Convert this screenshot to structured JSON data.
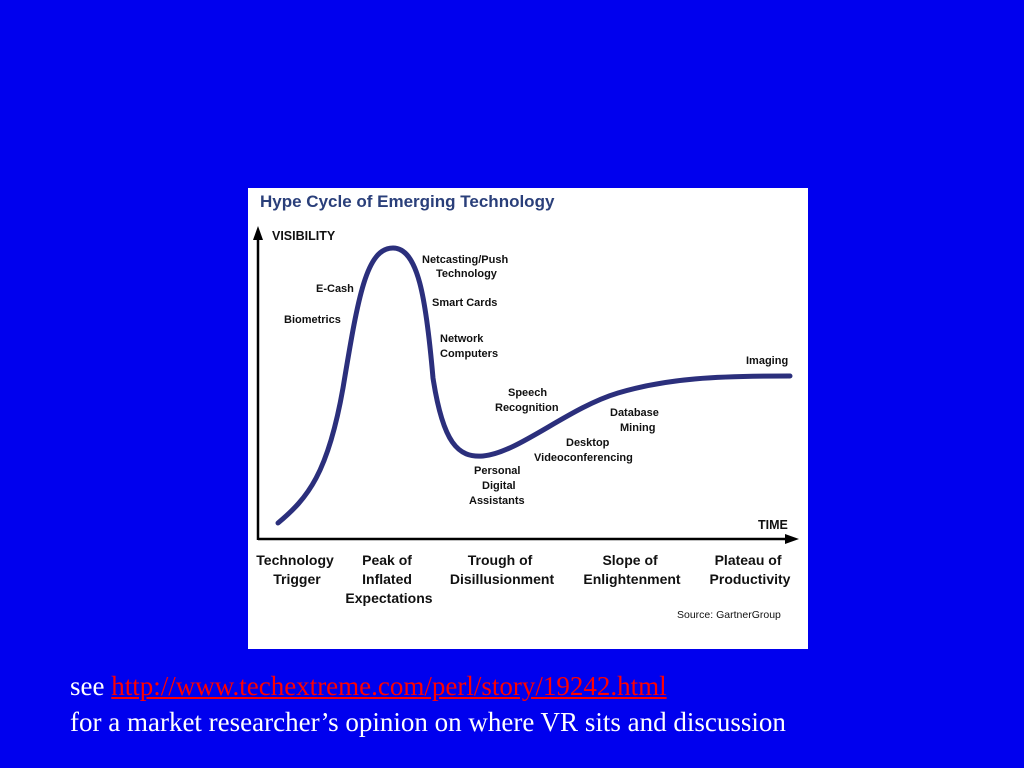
{
  "figure": {
    "title": "Hype Cycle of Emerging Technology",
    "y_axis_label": "VISIBILITY",
    "x_axis_label": "TIME",
    "curve_color": "#2b2f7c",
    "title_color": "#2a3f7a",
    "technologies": [
      {
        "label_lines": [
          "E-Cash"
        ]
      },
      {
        "label_lines": [
          "Biometrics"
        ]
      },
      {
        "label_lines": [
          "Netcasting/Push",
          "Technology"
        ]
      },
      {
        "label_lines": [
          "Smart Cards"
        ]
      },
      {
        "label_lines": [
          "Network",
          "Computers"
        ]
      },
      {
        "label_lines": [
          "Speech",
          "Recognition"
        ]
      },
      {
        "label_lines": [
          "Personal",
          "Digital",
          "Assistants"
        ]
      },
      {
        "label_lines": [
          "Desktop",
          "Videoconferencing"
        ]
      },
      {
        "label_lines": [
          "Database",
          "Mining"
        ]
      },
      {
        "label_lines": [
          "Imaging"
        ]
      }
    ],
    "phases": [
      {
        "lines": [
          "Technology",
          "Trigger"
        ]
      },
      {
        "lines": [
          "Peak of",
          "Inflated",
          "Expectations"
        ]
      },
      {
        "lines": [
          "Trough of",
          "Disillusionment"
        ]
      },
      {
        "lines": [
          "Slope of",
          "Enlightenment"
        ]
      },
      {
        "lines": [
          "Plateau of",
          "Productivity"
        ]
      }
    ],
    "source": "Source: GartnerGroup"
  },
  "caption": {
    "prefix": "see ",
    "link_text": "http://www.techextreme.com/perl/story/19242.html",
    "line2": "for a market researcher’s opinion on where VR sits and discussion",
    "link_color": "#ff0000"
  },
  "colors": {
    "background": "#0000ee",
    "text": "#ffffff"
  }
}
